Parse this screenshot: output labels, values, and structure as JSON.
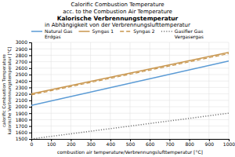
{
  "chart_data": {
    "type": "line",
    "title": [
      "Calorific Combustion Temperature",
      "acc. to the Combustion Air Temperature",
      "Kalorische Verbrennungstemperatur",
      "in Abhängigkeit von der Verbrennungslufttemperatur"
    ],
    "xlabel": "combustion air temperature/Verbrennungslufttemperatur [°C]",
    "ylabel": [
      "calorific Combustion Temperature",
      "kalorische Verbrennungstemperatur [°C]"
    ],
    "x": [
      0,
      1000
    ],
    "series": [
      {
        "name": "Natural Gas\nErdgas",
        "color": "#5b9bd5",
        "line_style": "solid",
        "values": [
          2020,
          2710
        ]
      },
      {
        "name": "Syngas 1",
        "color": "#c8964e",
        "line_style": "solid",
        "values": [
          2200,
          2845
        ]
      },
      {
        "name": "Syngas 2",
        "color": "#c8964e",
        "line_style": "dashed",
        "values": [
          2185,
          2825
        ]
      },
      {
        "name": "Gasifier Gas\nVergasergas",
        "color": "#777777",
        "line_style": "dotted",
        "values": [
          1500,
          1900
        ]
      }
    ],
    "xlim": [
      0,
      1000
    ],
    "ylim": [
      1500,
      3000
    ],
    "xticks": [
      0,
      100,
      200,
      300,
      400,
      500,
      600,
      700,
      800,
      900,
      1000
    ],
    "yticks": [
      1500,
      1600,
      1700,
      1800,
      1900,
      2000,
      2100,
      2200,
      2300,
      2400,
      2500,
      2600,
      2700,
      2800,
      2900,
      3000
    ],
    "grid": true,
    "legend": "top"
  }
}
